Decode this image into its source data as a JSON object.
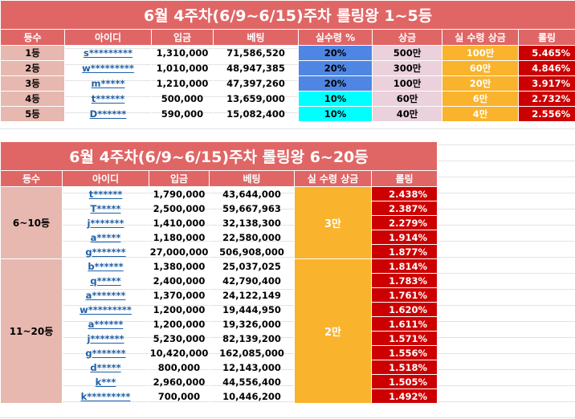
{
  "table1": {
    "title": "6월 4주차(6/9~6/15)주차 롤링왕 1~5등",
    "headers": [
      "등수",
      "아이디",
      "입금",
      "베팅",
      "실수령 %",
      "상금",
      "실 수령 상금",
      "롤링"
    ],
    "rows": [
      {
        "rank": "1등",
        "id": "s*********",
        "deposit": "1,310,000",
        "bet": "71,586,520",
        "pct": "20%",
        "prize": "500만",
        "actual": "100만",
        "rolling": "5.465%"
      },
      {
        "rank": "2등",
        "id": "w*********",
        "deposit": "1,010,000",
        "bet": "48,947,385",
        "pct": "20%",
        "prize": "300만",
        "actual": "60만",
        "rolling": "4.846%"
      },
      {
        "rank": "3등",
        "id": "m*****",
        "deposit": "1,210,000",
        "bet": "47,397,260",
        "pct": "20%",
        "prize": "100만",
        "actual": "20만",
        "rolling": "3.917%"
      },
      {
        "rank": "4등",
        "id": "t******",
        "deposit": "500,000",
        "bet": "13,659,000",
        "pct": "10%",
        "prize": "60만",
        "actual": "6만",
        "rolling": "2.732%"
      },
      {
        "rank": "5등",
        "id": "D******",
        "deposit": "590,000",
        "bet": "15,082,400",
        "pct": "10%",
        "prize": "40만",
        "actual": "4만",
        "rolling": "2.556%"
      }
    ]
  },
  "table2": {
    "title": "6월 4주차(6/9~6/15)주차 롤링왕 6~20등",
    "headers": [
      "등수",
      "아이디",
      "입금",
      "베팅",
      "실 수령 상금",
      "롤링"
    ],
    "groups": [
      {
        "label": "6~10등",
        "prize": "3만",
        "rows": [
          {
            "id": "t******",
            "deposit": "1,790,000",
            "bet": "43,644,000",
            "rolling": "2.438%"
          },
          {
            "id": "T*****",
            "deposit": "2,500,000",
            "bet": "59,667,963",
            "rolling": "2.387%"
          },
          {
            "id": "j*******",
            "deposit": "1,410,000",
            "bet": "32,138,300",
            "rolling": "2.279%"
          },
          {
            "id": "a*****",
            "deposit": "1,180,000",
            "bet": "22,580,000",
            "rolling": "1.914%"
          },
          {
            "id": "g*******",
            "deposit": "27,000,000",
            "bet": "506,908,000",
            "rolling": "1.877%"
          }
        ]
      },
      {
        "label": "11~20등",
        "prize": "2만",
        "rows": [
          {
            "id": "b******",
            "deposit": "1,380,000",
            "bet": "25,037,025",
            "rolling": "1.814%"
          },
          {
            "id": "q*****",
            "deposit": "2,400,000",
            "bet": "42,790,400",
            "rolling": "1.783%"
          },
          {
            "id": "a*******",
            "deposit": "1,370,000",
            "bet": "24,122,149",
            "rolling": "1.761%"
          },
          {
            "id": "w*********",
            "deposit": "1,200,000",
            "bet": "19,444,950",
            "rolling": "1.620%"
          },
          {
            "id": "a******",
            "deposit": "1,200,000",
            "bet": "19,326,000",
            "rolling": "1.611%"
          },
          {
            "id": "j*******",
            "deposit": "5,230,000",
            "bet": "82,139,200",
            "rolling": "1.571%"
          },
          {
            "id": "g*******",
            "deposit": "10,420,000",
            "bet": "162,085,000",
            "rolling": "1.556%"
          },
          {
            "id": "d*****",
            "deposit": "800,000",
            "bet": "12,143,000",
            "rolling": "1.518%"
          },
          {
            "id": "k***",
            "deposit": "2,960,000",
            "bet": "44,556,400",
            "rolling": "1.505%"
          },
          {
            "id": "k*********",
            "deposit": "700,000",
            "bet": "10,446,200",
            "rolling": "1.492%"
          }
        ]
      }
    ]
  },
  "colors": {
    "header": "#e06666",
    "rank_bg": "#e6b8af",
    "pct_high": "#4f86e4",
    "pct_low": "#00ffff",
    "prize_bg": "#ead1dc",
    "actual_bg": "#f9b32c",
    "rolling_bg": "#cc0000",
    "id_link": "#1f5fa6"
  }
}
